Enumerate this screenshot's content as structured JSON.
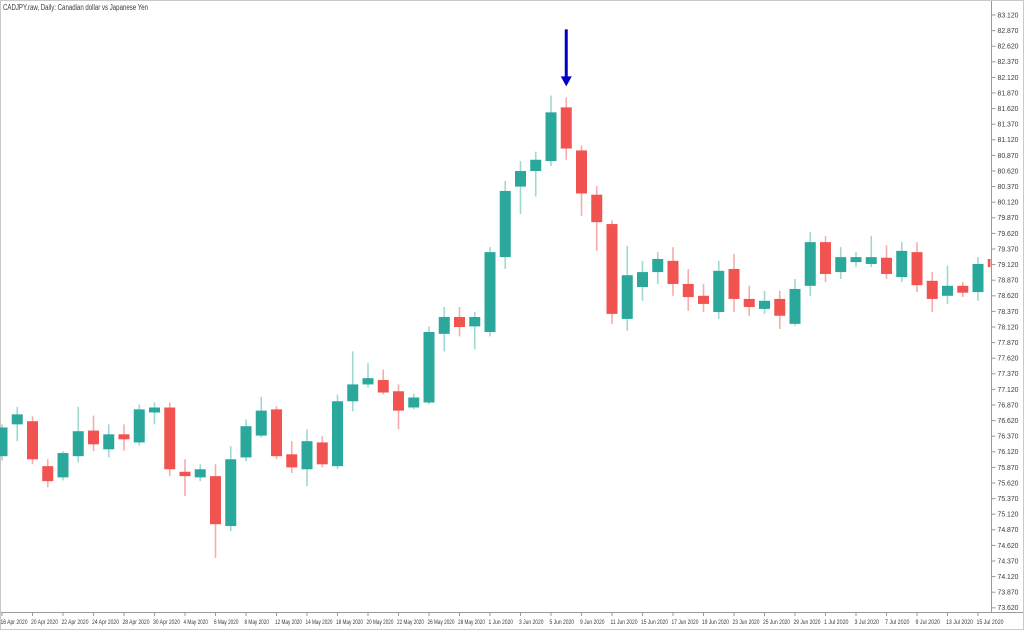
{
  "header": {
    "title": "CADJPY.raw, Daily: Canadian dollar vs Japanese Yen"
  },
  "chart_data": {
    "type": "candlestick",
    "symbol": "CADJPY.raw",
    "timeframe": "Daily",
    "description": "Canadian dollar vs Japanese Yen",
    "grid": "off",
    "colors": {
      "bull_body": "#2AA89B",
      "bear_body": "#F05350",
      "bull_wick": "#A0D8D2",
      "bear_wick": "#F8ACAA",
      "axis_line": "#9A9A9A",
      "frame": "#C9C9C9",
      "tick_text": "#3A3A3A",
      "background": "#FFFFFF",
      "arrow": "#0000C8"
    },
    "y_axis": {
      "side": "right",
      "min": 73.62,
      "max": 83.12,
      "step": 0.25,
      "labels": [
        "83.120",
        "82.870",
        "82.620",
        "82.370",
        "82.120",
        "81.870",
        "81.620",
        "81.370",
        "81.120",
        "80.870",
        "80.620",
        "80.370",
        "80.120",
        "79.870",
        "79.620",
        "79.370",
        "79.120",
        "78.870",
        "78.620",
        "78.370",
        "78.120",
        "77.870",
        "77.620",
        "77.370",
        "77.120",
        "76.870",
        "76.620",
        "76.370",
        "76.120",
        "75.870",
        "75.620",
        "75.370",
        "75.120",
        "74.870",
        "74.620",
        "74.370",
        "74.120",
        "73.870",
        "73.620"
      ]
    },
    "x_axis": {
      "label_every_n_candles": 2,
      "labels": [
        "16 Apr 2020",
        "20 Apr 2020",
        "22 Apr 2020",
        "24 Apr 2020",
        "28 Apr 2020",
        "30 Apr 2020",
        "4 May 2020",
        "6 May 2020",
        "8 May 2020",
        "12 May 2020",
        "14 May 2020",
        "18 May 2020",
        "20 May 2020",
        "22 May 2020",
        "26 May 2020",
        "28 May 2020",
        "1 Jun 2020",
        "3 Jun 2020",
        "5 Jun 2020",
        "9 Jun 2020",
        "11 Jun 2020",
        "15 Jun 2020",
        "17 Jun 2020",
        "19 Jun 2020",
        "23 Jun 2020",
        "25 Jun 2020",
        "29 Jun 2020",
        "1 Jul 2020",
        "3 Jul 2020",
        "7 Jul 2020",
        "9 Jul 2020",
        "13 Jul 2020",
        "15 Jul 2020"
      ]
    },
    "columns": [
      "date",
      "open",
      "high",
      "low",
      "close"
    ],
    "candles": [
      [
        "16 Apr 2020",
        76.05,
        76.56,
        75.98,
        76.51
      ],
      [
        "17 Apr 2020",
        76.56,
        76.84,
        76.29,
        76.72
      ],
      [
        "20 Apr 2020",
        76.61,
        76.69,
        75.92,
        76.0
      ],
      [
        "21 Apr 2020",
        75.89,
        76.0,
        75.55,
        75.65
      ],
      [
        "22 Apr 2020",
        75.71,
        76.13,
        75.66,
        76.1
      ],
      [
        "23 Apr 2020",
        76.05,
        76.84,
        75.95,
        76.45
      ],
      [
        "24 Apr 2020",
        76.46,
        76.7,
        76.13,
        76.24
      ],
      [
        "27 Apr 2020",
        76.16,
        76.56,
        76.03,
        76.4
      ],
      [
        "28 Apr 2020",
        76.4,
        76.56,
        76.14,
        76.32
      ],
      [
        "29 Apr 2020",
        76.27,
        76.88,
        76.22,
        76.8
      ],
      [
        "30 Apr 2020",
        76.75,
        76.91,
        76.56,
        76.83
      ],
      [
        "1 May 2020",
        76.83,
        76.91,
        75.73,
        75.84
      ],
      [
        "4 May 2020",
        75.8,
        76.0,
        75.41,
        75.73
      ],
      [
        "5 May 2020",
        75.71,
        75.92,
        75.65,
        75.84
      ],
      [
        "6 May 2020",
        75.73,
        75.92,
        74.42,
        74.96
      ],
      [
        "7 May 2020",
        74.93,
        76.21,
        74.85,
        76.0
      ],
      [
        "8 May 2020",
        76.03,
        76.64,
        75.97,
        76.53
      ],
      [
        "11 May 2020",
        76.38,
        77.0,
        76.35,
        76.78
      ],
      [
        "12 May 2020",
        76.8,
        76.85,
        76.0,
        76.05
      ],
      [
        "13 May 2020",
        76.08,
        76.29,
        75.78,
        75.87
      ],
      [
        "14 May 2020",
        75.84,
        76.48,
        75.57,
        76.29
      ],
      [
        "15 May 2020",
        76.27,
        76.37,
        75.87,
        75.92
      ],
      [
        "18 May 2020",
        75.89,
        77.04,
        75.84,
        76.93
      ],
      [
        "19 May 2020",
        76.93,
        77.73,
        76.77,
        77.2
      ],
      [
        "20 May 2020",
        77.2,
        77.54,
        77.15,
        77.3
      ],
      [
        "21 May 2020",
        77.27,
        77.44,
        77.04,
        77.07
      ],
      [
        "22 May 2020",
        77.09,
        77.2,
        76.48,
        76.78
      ],
      [
        "25 May 2020",
        76.83,
        77.05,
        76.8,
        76.99
      ],
      [
        "26 May 2020",
        76.91,
        78.13,
        76.88,
        78.04
      ],
      [
        "27 May 2020",
        78.01,
        78.44,
        77.73,
        78.28
      ],
      [
        "28 May 2020",
        78.28,
        78.44,
        77.97,
        78.12
      ],
      [
        "29 May 2020",
        78.13,
        78.36,
        77.76,
        78.28
      ],
      [
        "1 Jun 2020",
        78.04,
        79.4,
        77.97,
        79.32
      ],
      [
        "2 Jun 2020",
        79.24,
        80.46,
        79.05,
        80.3
      ],
      [
        "3 Jun 2020",
        80.37,
        80.78,
        79.93,
        80.62
      ],
      [
        "4 Jun 2020",
        80.62,
        80.93,
        80.21,
        80.8
      ],
      [
        "5 Jun 2020",
        80.78,
        81.83,
        80.7,
        81.56
      ],
      [
        "8 Jun 2020",
        81.64,
        81.8,
        80.8,
        80.98
      ],
      [
        "9 Jun 2020",
        80.95,
        81.03,
        79.9,
        80.26
      ],
      [
        "10 Jun 2020",
        80.24,
        80.38,
        79.34,
        79.8
      ],
      [
        "11 Jun 2020",
        79.77,
        79.83,
        78.17,
        78.33
      ],
      [
        "12 Jun 2020",
        78.25,
        79.42,
        78.06,
        78.95
      ],
      [
        "15 Jun 2020",
        78.76,
        79.18,
        78.54,
        79.0
      ],
      [
        "16 Jun 2020",
        79.0,
        79.32,
        78.81,
        79.21
      ],
      [
        "17 Jun 2020",
        79.18,
        79.4,
        78.62,
        78.81
      ],
      [
        "18 Jun 2020",
        78.81,
        79.05,
        78.38,
        78.6
      ],
      [
        "19 Jun 2020",
        78.62,
        78.81,
        78.36,
        78.49
      ],
      [
        "22 Jun 2020",
        78.36,
        79.18,
        78.25,
        79.02
      ],
      [
        "23 Jun 2020",
        79.05,
        79.29,
        78.36,
        78.57
      ],
      [
        "24 Jun 2020",
        78.57,
        78.78,
        78.3,
        78.44
      ],
      [
        "25 Jun 2020",
        78.41,
        78.7,
        78.33,
        78.54
      ],
      [
        "26 Jun 2020",
        78.57,
        78.7,
        78.09,
        78.3
      ],
      [
        "29 Jun 2020",
        78.17,
        78.89,
        78.14,
        78.73
      ],
      [
        "30 Jun 2020",
        78.78,
        79.64,
        78.62,
        79.48
      ],
      [
        "1 Jul 2020",
        79.48,
        79.58,
        78.84,
        78.97
      ],
      [
        "2 Jul 2020",
        79.0,
        79.4,
        78.89,
        79.24
      ],
      [
        "3 Jul 2020",
        79.16,
        79.32,
        79.08,
        79.24
      ],
      [
        "6 Jul 2020",
        79.13,
        79.58,
        79.08,
        79.24
      ],
      [
        "7 Jul 2020",
        79.23,
        79.43,
        78.89,
        78.97
      ],
      [
        "8 Jul 2020",
        78.92,
        79.48,
        78.84,
        79.34
      ],
      [
        "9 Jul 2020",
        79.32,
        79.48,
        78.68,
        78.79
      ],
      [
        "10 Jul 2020",
        78.86,
        79.0,
        78.36,
        78.57
      ],
      [
        "13 Jul 2020",
        78.62,
        79.1,
        78.49,
        78.78
      ],
      [
        "14 Jul 2020",
        78.78,
        78.84,
        78.6,
        78.67
      ],
      [
        "15 Jul 2020",
        78.68,
        79.24,
        78.54,
        79.13
      ],
      [
        "16 Jul 2020",
        79.21,
        79.26,
        79.03,
        79.08
      ]
    ],
    "annotation": {
      "shape": "arrow-down",
      "color": "#0000C8",
      "candle_index": 37,
      "date": "8 Jun 2020"
    }
  }
}
